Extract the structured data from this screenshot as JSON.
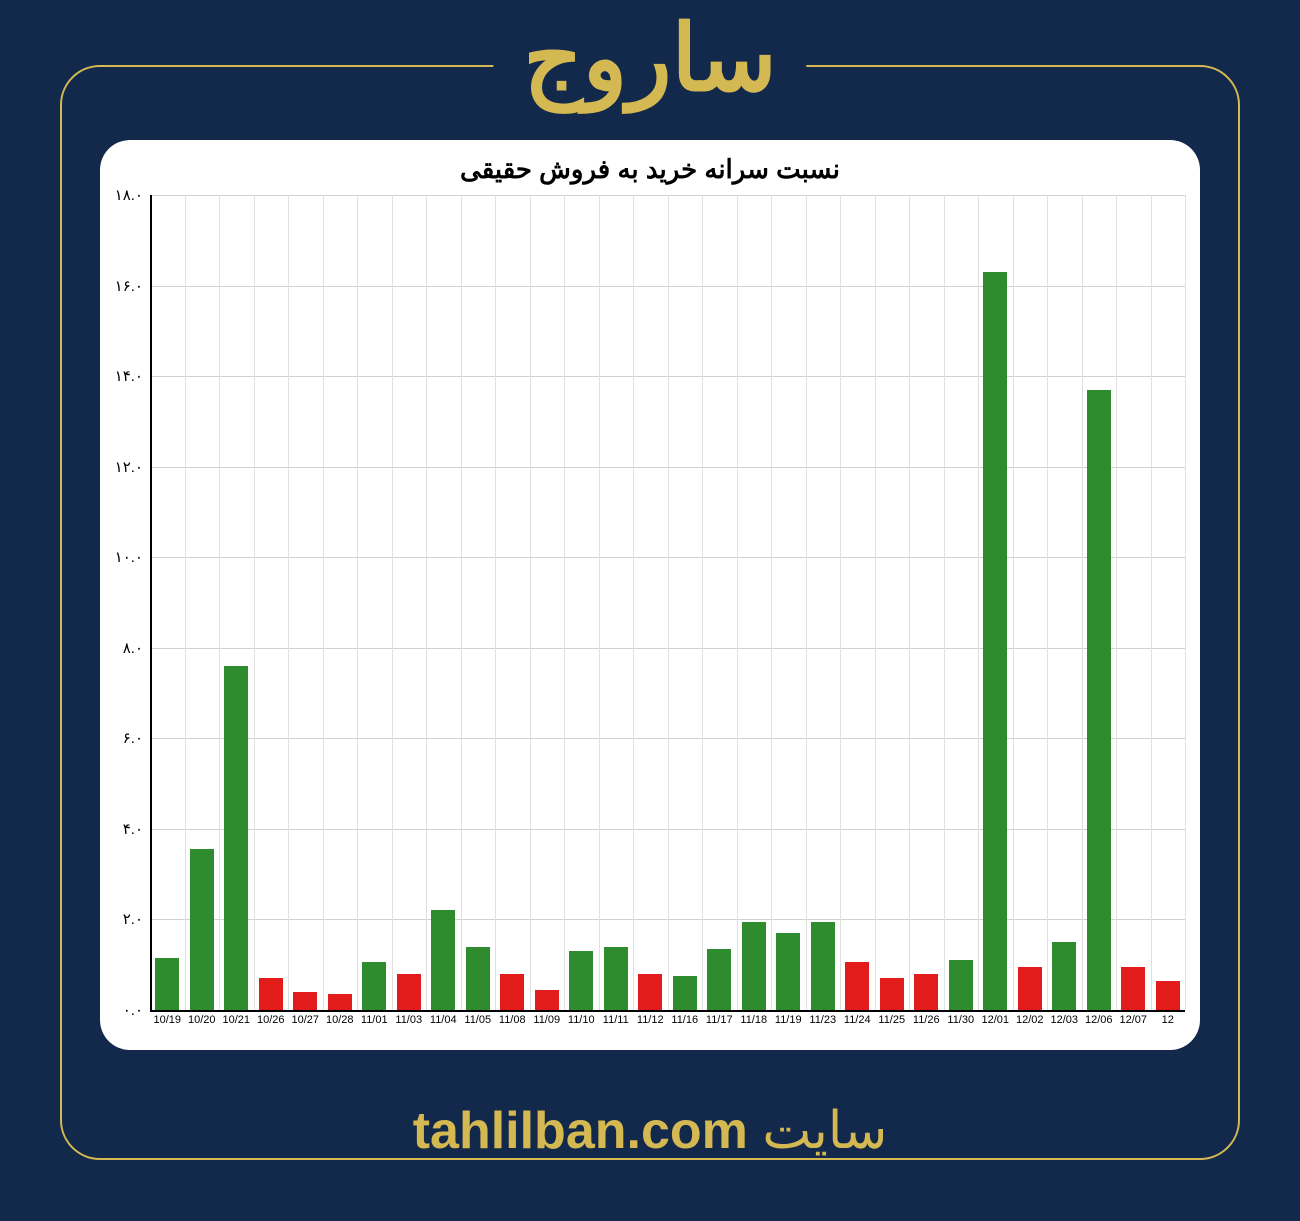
{
  "page": {
    "background_color": "#13294b",
    "accent_color": "#d4b851",
    "header_title": "ساروج",
    "footer_site_word": "سایت",
    "footer_site_url": "tahlilban.com"
  },
  "chart": {
    "type": "bar",
    "title": "نسبت سرانه خرید به فروش حقیقی",
    "title_fontsize": 26,
    "title_color": "#000000",
    "background_color": "#ffffff",
    "grid_color": "#d0d0d0",
    "axis_color": "#000000",
    "ylim": [
      0,
      18
    ],
    "ytick_step": 2,
    "ytick_labels": [
      "۰.۰",
      "۲.۰",
      "۴.۰",
      "۶.۰",
      "۸.۰",
      "۱۰.۰",
      "۱۲.۰",
      "۱۴.۰",
      "۱۶.۰",
      "۱۸.۰"
    ],
    "tick_label_fontsize": 15,
    "x_tick_label_fontsize": 11,
    "bar_width": 0.7,
    "green": "#2e8b2e",
    "red": "#e21b1b",
    "categories": [
      "10/19",
      "10/20",
      "10/21",
      "10/26",
      "10/27",
      "10/28",
      "11/01",
      "11/03",
      "11/04",
      "11/05",
      "11/08",
      "11/09",
      "11/10",
      "11/11",
      "11/12",
      "11/16",
      "11/17",
      "11/18",
      "11/19",
      "11/23",
      "11/24",
      "11/25",
      "11/26",
      "11/30",
      "12/01",
      "12/02",
      "12/03",
      "12/06",
      "12/07",
      "12"
    ],
    "values": [
      1.15,
      3.55,
      7.6,
      0.7,
      0.4,
      0.35,
      1.05,
      0.8,
      2.2,
      1.4,
      0.8,
      0.45,
      1.3,
      1.4,
      0.8,
      0.75,
      1.35,
      1.95,
      1.7,
      1.95,
      1.05,
      0.7,
      0.8,
      1.1,
      16.3,
      0.95,
      1.5,
      13.7,
      0.95,
      0.65
    ],
    "colors": [
      "green",
      "green",
      "green",
      "red",
      "red",
      "red",
      "green",
      "red",
      "green",
      "green",
      "red",
      "red",
      "green",
      "green",
      "red",
      "green",
      "green",
      "green",
      "green",
      "green",
      "red",
      "red",
      "red",
      "green",
      "green",
      "red",
      "green",
      "green",
      "red",
      "red"
    ]
  }
}
